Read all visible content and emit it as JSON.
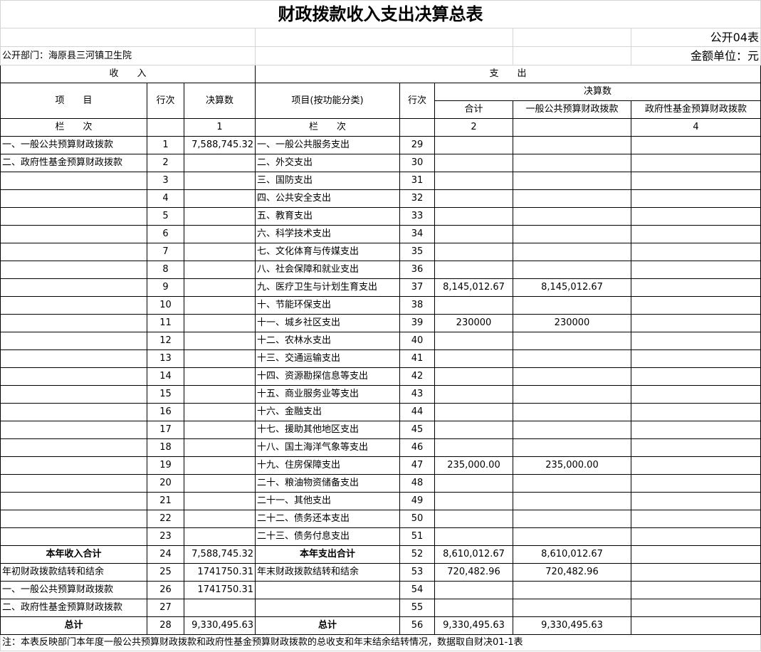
{
  "title": "财政拨款收入支出决算总表",
  "form_no": "公开04表",
  "department": "公开部门：海原县三河镇卫生院",
  "unit": "金额单位：元",
  "header": {
    "income": "收　　入",
    "expense": "支　　出",
    "item": "项　　目",
    "row_no": "行次",
    "amount": "决算数",
    "exp_item": "项目(按功能分类)",
    "exp_row_no": "行次",
    "exp_amount": "决算数",
    "total": "合计",
    "general": "一般公共预算财政拨款",
    "fund": "政府性基金预算财政拨款",
    "col_label": "栏　　次",
    "col1": "1",
    "exp_col_label": "栏　　次",
    "col2": "2",
    "col4": "4"
  },
  "rows": [
    [
      "一、一般公共预算财政拨款",
      "1",
      "7,588,745.32",
      "一、一般公共服务支出",
      "29",
      "",
      "",
      ""
    ],
    [
      "二、政府性基金预算财政拨款",
      "2",
      "",
      "二、外交支出",
      "30",
      "",
      "",
      ""
    ],
    [
      "",
      "3",
      "",
      "三、国防支出",
      "31",
      "",
      "",
      ""
    ],
    [
      "",
      "4",
      "",
      "四、公共安全支出",
      "32",
      "",
      "",
      ""
    ],
    [
      "",
      "5",
      "",
      "五、教育支出",
      "33",
      "",
      "",
      ""
    ],
    [
      "",
      "6",
      "",
      "六、科学技术支出",
      "34",
      "",
      "",
      ""
    ],
    [
      "",
      "7",
      "",
      "七、文化体育与传媒支出",
      "35",
      "",
      "",
      ""
    ],
    [
      "",
      "8",
      "",
      "八、社会保障和就业支出",
      "36",
      "",
      "",
      ""
    ],
    [
      "",
      "9",
      "",
      "九、医疗卫生与计划生育支出",
      "37",
      "8,145,012.67",
      "8,145,012.67",
      ""
    ],
    [
      "",
      "10",
      "",
      "十、节能环保支出",
      "38",
      "",
      "",
      ""
    ],
    [
      "",
      "11",
      "",
      "十一、城乡社区支出",
      "39",
      "230000",
      "230000",
      ""
    ],
    [
      "",
      "12",
      "",
      "十二、农林水支出",
      "40",
      "",
      "",
      ""
    ],
    [
      "",
      "13",
      "",
      "十三、交通运输支出",
      "41",
      "",
      "",
      ""
    ],
    [
      "",
      "14",
      "",
      "十四、资源勘探信息等支出",
      "42",
      "",
      "",
      ""
    ],
    [
      "",
      "15",
      "",
      "十五、商业服务业等支出",
      "43",
      "",
      "",
      ""
    ],
    [
      "",
      "16",
      "",
      "十六、金融支出",
      "44",
      "",
      "",
      ""
    ],
    [
      "",
      "17",
      "",
      "十七、援助其他地区支出",
      "45",
      "",
      "",
      ""
    ],
    [
      "",
      "18",
      "",
      "十八、国土海洋气象等支出",
      "46",
      "",
      "",
      ""
    ],
    [
      "",
      "19",
      "",
      "十九、住房保障支出",
      "47",
      "235,000.00",
      "235,000.00",
      ""
    ],
    [
      "",
      "20",
      "",
      "二十、粮油物资储备支出",
      "48",
      "",
      "",
      ""
    ],
    [
      "",
      "21",
      "",
      "二十一、其他支出",
      "49",
      "",
      "",
      ""
    ],
    [
      "",
      "22",
      "",
      "二十二、债务还本支出",
      "50",
      "",
      "",
      ""
    ],
    [
      "",
      "23",
      "",
      "二十三、债务付息支出",
      "51",
      "",
      "",
      ""
    ],
    [
      "本年收入合计",
      "24",
      "7,588,745.32",
      "本年支出合计",
      "52",
      "8,610,012.67",
      "8,610,012.67",
      ""
    ],
    [
      "年初财政拨款结转和结余",
      "25",
      "1741750.31",
      "年末财政拨款结转和结余",
      "53",
      "720,482.96",
      "720,482.96",
      ""
    ],
    [
      "一、一般公共预算财政拨款",
      "26",
      "1741750.31",
      "",
      "54",
      "",
      "",
      ""
    ],
    [
      "二、政府性基金预算财政拨款",
      "27",
      "",
      "",
      "55",
      "",
      "",
      ""
    ],
    [
      "总计",
      "28",
      "9,330,495.63",
      "总计",
      "56",
      "9,330,495.63",
      "9,330,495.63",
      ""
    ]
  ],
  "bold_rows": [
    23,
    27
  ],
  "note": "注：本表反映部门本年度一般公共预算财政拨款和政府性基金预算财政拨款的总收支和年末结余结转情况，数据取自财决01-1表"
}
